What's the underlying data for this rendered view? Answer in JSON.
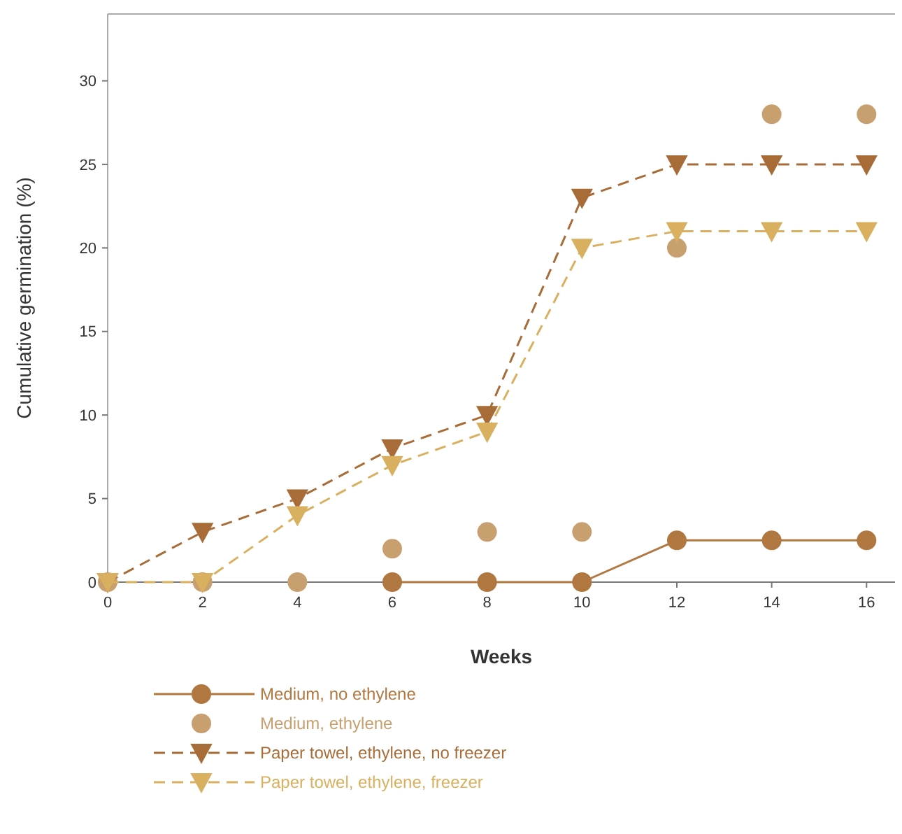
{
  "chart_data": {
    "type": "line",
    "xlabel": "Weeks",
    "ylabel": "Cumulative germination (%)",
    "x": [
      0,
      2,
      4,
      6,
      8,
      10,
      12,
      14,
      16
    ],
    "xlim": [
      0,
      16.6
    ],
    "xticks": [
      0,
      2,
      4,
      6,
      8,
      10,
      12,
      14,
      16
    ],
    "ylim": [
      0,
      34
    ],
    "yticks": [
      0,
      5,
      10,
      15,
      20,
      25,
      30
    ],
    "legend": "bottom",
    "grid": false,
    "series": [
      {
        "name": "Medium, no ethylene",
        "color": "#b07840",
        "values": [
          null,
          null,
          null,
          0,
          0,
          0,
          2.5,
          2.5,
          2.5
        ],
        "marker": "circle",
        "line_style": "solid"
      },
      {
        "name": "Medium, ethylene",
        "color": "#c8a070",
        "type": "scatter",
        "values": [
          0,
          0,
          0,
          2,
          3,
          3,
          20,
          28,
          28
        ],
        "marker": "circle"
      },
      {
        "name": "Paper towel, ethylene, no freezer",
        "color": "#a86c38",
        "values": [
          0,
          3,
          5,
          8,
          10,
          23,
          25,
          25,
          25
        ],
        "marker": "triangle",
        "line_style": "dashed"
      },
      {
        "name": "Paper towel, ethylene, freezer",
        "color": "#d8b060",
        "values": [
          0,
          0,
          4,
          7,
          9,
          20,
          21,
          21,
          21
        ],
        "marker": "triangle",
        "line_style": "dashed"
      }
    ]
  }
}
